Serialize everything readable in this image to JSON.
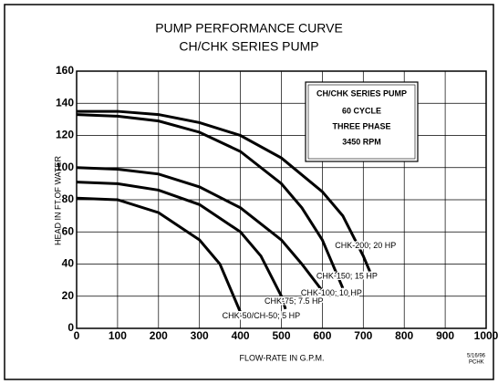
{
  "chart_data": {
    "type": "line",
    "title": "PUMP PERFORMANCE CURVE",
    "subtitle": "CH/CHK SERIES PUMP",
    "xlabel": "FLOW-RATE IN G.P.M.",
    "ylabel": "HEAD IN FT.OF WATER",
    "xlim": [
      0,
      1000
    ],
    "ylim": [
      0,
      160
    ],
    "xticks": [
      0,
      100,
      200,
      300,
      400,
      500,
      600,
      700,
      800,
      900,
      1000
    ],
    "yticks": [
      0,
      20,
      40,
      60,
      80,
      100,
      120,
      140,
      160
    ],
    "grid": true,
    "box_lines": [
      "CH/CHK SERIES PUMP",
      "60 CYCLE",
      "THREE PHASE",
      "3450 RPM"
    ],
    "footnote": [
      "5/16/96",
      "PCHK"
    ],
    "series": [
      {
        "name": "CHK-200; 20 HP",
        "color": "#000000",
        "x": [
          0,
          100,
          200,
          300,
          400,
          500,
          600,
          650,
          700,
          720
        ],
        "values": [
          135,
          135,
          133,
          128,
          120,
          106,
          85,
          70,
          45,
          33
        ]
      },
      {
        "name": "CHK-150; 15 HP",
        "color": "#000000",
        "x": [
          0,
          100,
          200,
          300,
          400,
          500,
          550,
          600,
          650
        ],
        "values": [
          133,
          132,
          129,
          122,
          110,
          90,
          75,
          55,
          25
        ]
      },
      {
        "name": "CHK-100; 10 HP",
        "color": "#000000",
        "x": [
          0,
          100,
          200,
          300,
          400,
          500,
          550,
          610
        ],
        "values": [
          100,
          99,
          96,
          88,
          75,
          55,
          40,
          20
        ]
      },
      {
        "name": "CHK-75; 7.5 HP",
        "color": "#000000",
        "x": [
          0,
          100,
          200,
          300,
          400,
          450,
          500,
          510
        ],
        "values": [
          91,
          90,
          86,
          77,
          60,
          45,
          20,
          12
        ]
      },
      {
        "name": "CHK-50/CH-50; 5 HP",
        "color": "#000000",
        "x": [
          0,
          100,
          200,
          300,
          350,
          400
        ],
        "values": [
          81,
          80,
          72,
          55,
          40,
          10
        ]
      }
    ]
  }
}
